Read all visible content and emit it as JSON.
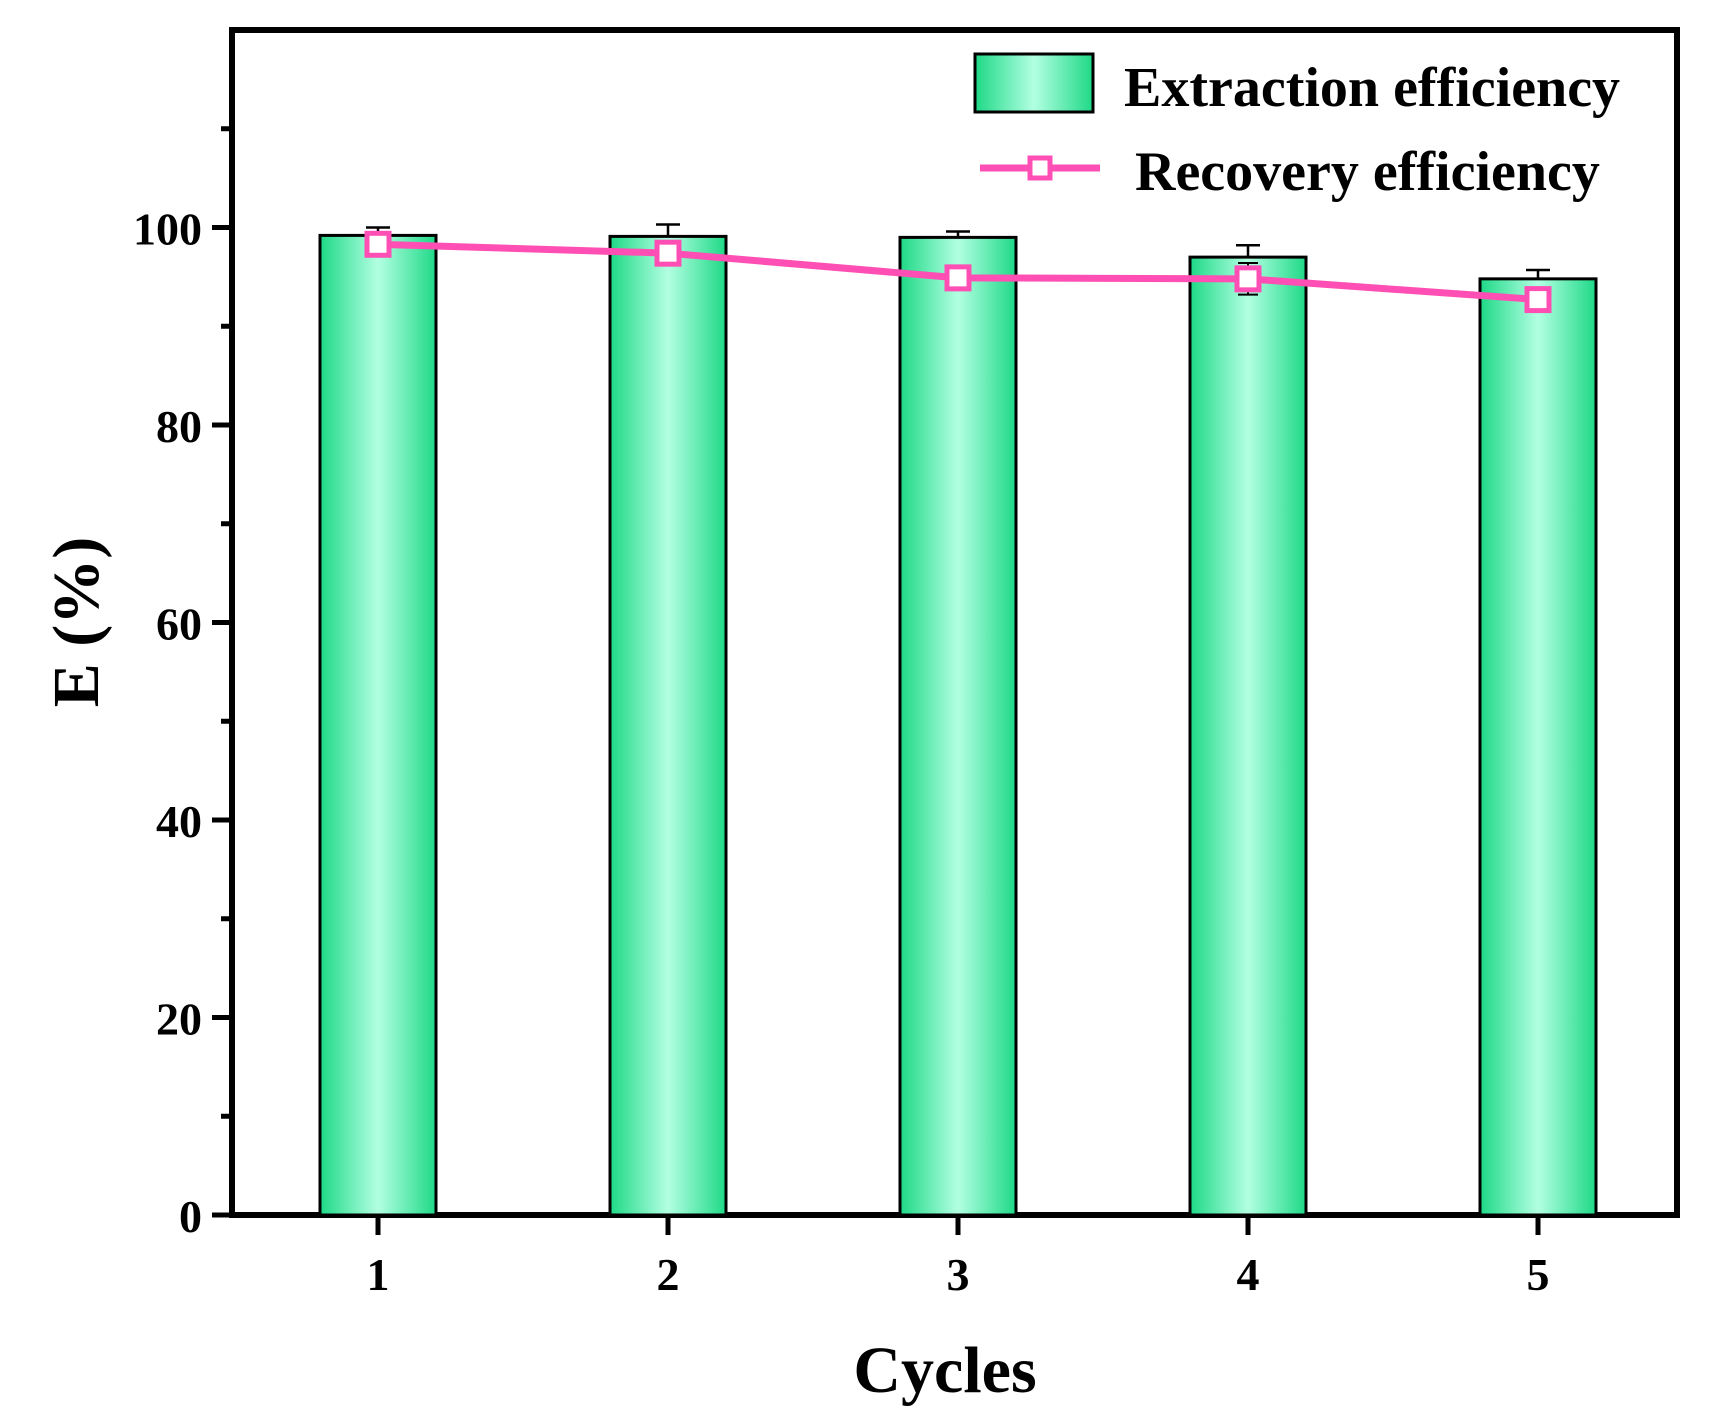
{
  "chart_data": {
    "type": "bar",
    "xlabel": "Cycles",
    "ylabel": "E (%)",
    "categories": [
      "1",
      "2",
      "3",
      "4",
      "5"
    ],
    "ylim": [
      0,
      120
    ],
    "yticks": [
      "0",
      "20",
      "40",
      "60",
      "80",
      "100"
    ],
    "ytick_values": [
      0,
      20,
      40,
      60,
      80,
      100
    ],
    "legend_position": "top-right",
    "series": [
      {
        "name": "Extraction efficiency",
        "kind": "bar",
        "values": [
          99.2,
          99.1,
          99.0,
          97.0,
          94.8
        ],
        "errors": [
          0.8,
          1.2,
          0.6,
          1.2,
          0.9
        ]
      },
      {
        "name": "Recovery efficiency",
        "kind": "line",
        "values": [
          98.3,
          97.4,
          94.9,
          94.8,
          92.7
        ],
        "errors": [
          0.9,
          0.8,
          0.4,
          1.6,
          0.5
        ]
      }
    ],
    "colors": {
      "bar_edge": "#1ed986",
      "bar_center": "#b2ffe2",
      "line": "#ff4fb4",
      "axis": "#000000"
    }
  }
}
